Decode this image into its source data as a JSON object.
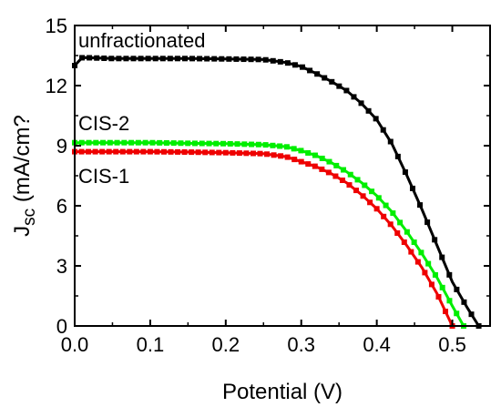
{
  "chart_data": {
    "type": "line",
    "xlabel": "Potential (V)",
    "ylabel_main": "J",
    "ylabel_sub": "sc",
    "ylabel_unit": " (mA/cm?",
    "xlim": [
      0.0,
      0.55
    ],
    "ylim": [
      0,
      15
    ],
    "xticks": [
      "0.0",
      "0.1",
      "0.2",
      "0.3",
      "0.4",
      "0.5"
    ],
    "xtick_values": [
      0.0,
      0.1,
      0.2,
      0.3,
      0.4,
      0.5
    ],
    "yticks": [
      "0",
      "3",
      "6",
      "9",
      "12",
      "15"
    ],
    "ytick_values": [
      0,
      3,
      6,
      9,
      12,
      15
    ],
    "series": [
      {
        "name": "unfractionated",
        "color": "#000000",
        "x": [
          0.0,
          0.01,
          0.05,
          0.1,
          0.15,
          0.2,
          0.25,
          0.28,
          0.3,
          0.32,
          0.34,
          0.36,
          0.38,
          0.4,
          0.42,
          0.44,
          0.46,
          0.48,
          0.5,
          0.52,
          0.535
        ],
        "y": [
          13.0,
          13.4,
          13.35,
          13.35,
          13.35,
          13.33,
          13.3,
          13.15,
          12.95,
          12.6,
          12.2,
          11.75,
          11.1,
          10.3,
          9.1,
          7.5,
          5.8,
          4.0,
          2.2,
          0.9,
          0.0
        ]
      },
      {
        "name": "CIS-2",
        "color": "#00ee00",
        "x": [
          0.0,
          0.05,
          0.1,
          0.15,
          0.2,
          0.25,
          0.28,
          0.3,
          0.32,
          0.34,
          0.36,
          0.38,
          0.4,
          0.42,
          0.44,
          0.46,
          0.48,
          0.5,
          0.515
        ],
        "y": [
          9.15,
          9.15,
          9.15,
          9.12,
          9.1,
          9.05,
          8.95,
          8.75,
          8.5,
          8.15,
          7.7,
          7.15,
          6.5,
          5.7,
          4.7,
          3.6,
          2.4,
          1.0,
          0.0
        ]
      },
      {
        "name": "CIS-1",
        "color": "#ee0000",
        "x": [
          0.0,
          0.05,
          0.1,
          0.15,
          0.2,
          0.25,
          0.28,
          0.3,
          0.32,
          0.34,
          0.36,
          0.38,
          0.4,
          0.42,
          0.44,
          0.46,
          0.48,
          0.5
        ],
        "y": [
          8.7,
          8.7,
          8.7,
          8.68,
          8.65,
          8.6,
          8.45,
          8.2,
          7.95,
          7.6,
          7.15,
          6.55,
          5.85,
          5.0,
          4.0,
          2.9,
          1.6,
          0.0
        ]
      }
    ],
    "annotations": [
      {
        "text": "unfractionated",
        "series": "unfractionated"
      },
      {
        "text": "CIS-2",
        "series": "CIS-2"
      },
      {
        "text": "CIS-1",
        "series": "CIS-1"
      }
    ]
  }
}
